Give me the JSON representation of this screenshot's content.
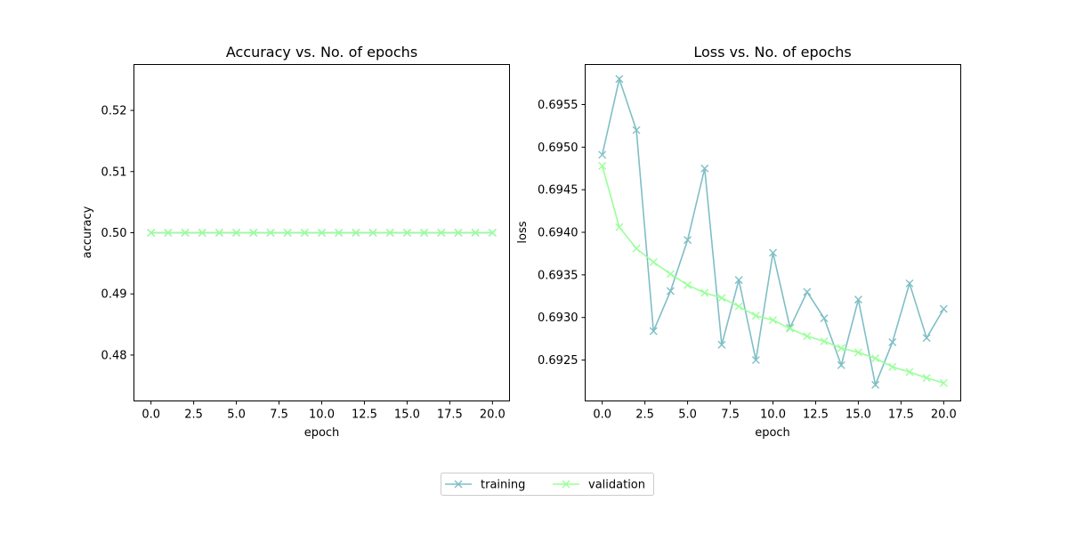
{
  "chart_data": [
    {
      "type": "line",
      "title": "Accuracy vs. No. of epochs",
      "xlabel": "epoch",
      "ylabel": "accuracy",
      "xlim": [
        -1,
        21
      ],
      "ylim": [
        0.4725,
        0.5275
      ],
      "xticks": [
        0,
        2.5,
        5,
        7.5,
        10,
        12.5,
        15,
        17.5,
        20
      ],
      "xtick_labels": [
        "0.0",
        "2.5",
        "5.0",
        "7.5",
        "10.0",
        "12.5",
        "15.0",
        "17.5",
        "20.0"
      ],
      "yticks": [
        0.48,
        0.49,
        0.5,
        0.51,
        0.52
      ],
      "ytick_labels": [
        "0.48",
        "0.49",
        "0.50",
        "0.51",
        "0.52"
      ],
      "x": [
        0,
        1,
        2,
        3,
        4,
        5,
        6,
        7,
        8,
        9,
        10,
        11,
        12,
        13,
        14,
        15,
        16,
        17,
        18,
        19,
        20
      ],
      "series": [
        {
          "name": "training",
          "color": "#7fbfc6",
          "values": [
            0.5,
            0.5,
            0.5,
            0.5,
            0.5,
            0.5,
            0.5,
            0.5,
            0.5,
            0.5,
            0.5,
            0.5,
            0.5,
            0.5,
            0.5,
            0.5,
            0.5,
            0.5,
            0.5,
            0.5,
            0.5
          ]
        },
        {
          "name": "validation",
          "color": "#99ff99",
          "values": [
            0.5,
            0.5,
            0.5,
            0.5,
            0.5,
            0.5,
            0.5,
            0.5,
            0.5,
            0.5,
            0.5,
            0.5,
            0.5,
            0.5,
            0.5,
            0.5,
            0.5,
            0.5,
            0.5,
            0.5,
            0.5
          ]
        }
      ],
      "grid": false
    },
    {
      "type": "line",
      "title": "Loss vs. No. of epochs",
      "xlabel": "epoch",
      "ylabel": "loss",
      "xlim": [
        -1,
        21
      ],
      "ylim": [
        0.69202,
        0.69597
      ],
      "xticks": [
        0,
        2.5,
        5,
        7.5,
        10,
        12.5,
        15,
        17.5,
        20
      ],
      "xtick_labels": [
        "0.0",
        "2.5",
        "5.0",
        "7.5",
        "10.0",
        "12.5",
        "15.0",
        "17.5",
        "20.0"
      ],
      "yticks": [
        0.6925,
        0.693,
        0.6935,
        0.694,
        0.6945,
        0.695,
        0.6955
      ],
      "ytick_labels": [
        "0.6925",
        "0.6930",
        "0.6935",
        "0.6940",
        "0.6945",
        "0.6950",
        "0.6955"
      ],
      "x": [
        0,
        1,
        2,
        3,
        4,
        5,
        6,
        7,
        8,
        9,
        10,
        11,
        12,
        13,
        14,
        15,
        16,
        17,
        18,
        19,
        20
      ],
      "series": [
        {
          "name": "training",
          "color": "#7fbfc6",
          "values": [
            0.69491,
            0.6958,
            0.6952,
            0.69284,
            0.69331,
            0.69391,
            0.69475,
            0.69268,
            0.69344,
            0.6925,
            0.69376,
            0.69288,
            0.6933,
            0.69299,
            0.69244,
            0.69321,
            0.69221,
            0.69271,
            0.6934,
            0.69276,
            0.6931
          ]
        },
        {
          "name": "validation",
          "color": "#99ff99",
          "values": [
            0.69478,
            0.69406,
            0.69381,
            0.69365,
            0.69351,
            0.69338,
            0.69329,
            0.69323,
            0.69313,
            0.69302,
            0.69297,
            0.69287,
            0.69278,
            0.69272,
            0.69264,
            0.69259,
            0.69252,
            0.69242,
            0.69236,
            0.69229,
            0.69223
          ]
        }
      ],
      "grid": false
    }
  ],
  "legend": {
    "placement": "bottom-center",
    "entries": [
      {
        "label": "training",
        "color": "#7fbfc6"
      },
      {
        "label": "validation",
        "color": "#99ff99"
      }
    ]
  }
}
